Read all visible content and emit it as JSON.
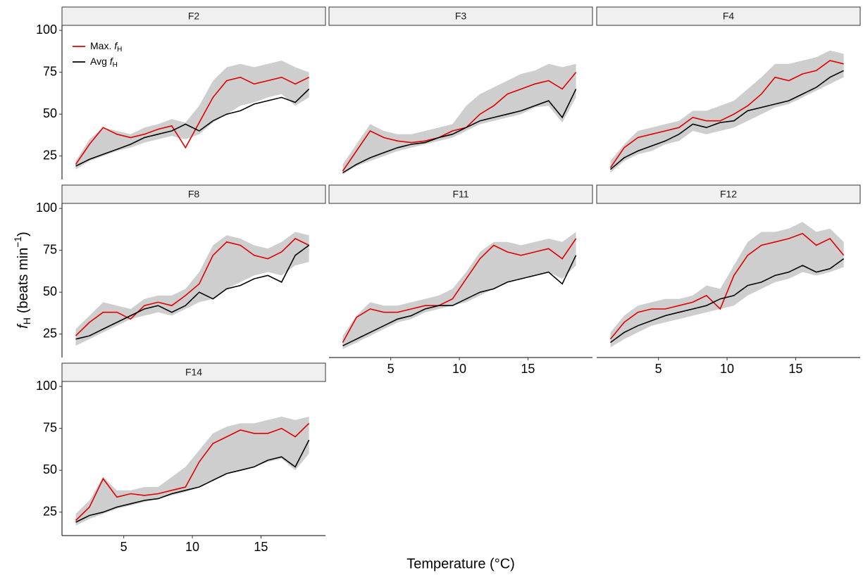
{
  "chart_data": {
    "type": "line",
    "x_label": "Temperature (°C)",
    "y_label": [
      "f",
      "H",
      "(beats min",
      "−1",
      ")"
    ],
    "xlim": [
      0.5,
      19.7
    ],
    "ylim": [
      11,
      103
    ],
    "xticks": [
      5,
      10,
      15
    ],
    "yticks": [
      25,
      50,
      75,
      100
    ],
    "series": [
      {
        "name": [
          "Max. ",
          "f",
          "H"
        ],
        "color": "#e00000"
      },
      {
        "name": [
          "Avg ",
          "f",
          "H"
        ],
        "color": "#000000"
      }
    ],
    "band_color": "#bdbdbd",
    "x": [
      1.5,
      2.5,
      3.5,
      4.5,
      5.5,
      6.5,
      7.5,
      8.5,
      9.5,
      10.5,
      11.5,
      12.5,
      13.5,
      14.5,
      15.5,
      16.5,
      17.5,
      18.5
    ],
    "panels": [
      {
        "title": "F2",
        "max": [
          20,
          32,
          42,
          38,
          36,
          38,
          41,
          43,
          30,
          45,
          60,
          70,
          72,
          68,
          70,
          72,
          68,
          72
        ],
        "avg": [
          19,
          23,
          26,
          29,
          32,
          36,
          38,
          40,
          44,
          40,
          46,
          50,
          52,
          56,
          58,
          60,
          57,
          65
        ],
        "lower": [
          17,
          22,
          25,
          28,
          30,
          33,
          35,
          37,
          35,
          38,
          45,
          50,
          55,
          57,
          60,
          62,
          55,
          60
        ],
        "upper": [
          22,
          35,
          42,
          40,
          38,
          42,
          44,
          47,
          45,
          55,
          70,
          78,
          80,
          78,
          80,
          82,
          78,
          75
        ]
      },
      {
        "title": "F3",
        "max": [
          16,
          28,
          40,
          36,
          34,
          33,
          34,
          36,
          40,
          42,
          50,
          55,
          62,
          65,
          68,
          70,
          65,
          75
        ],
        "avg": [
          15,
          20,
          24,
          27,
          30,
          32,
          33,
          36,
          38,
          42,
          46,
          48,
          50,
          52,
          55,
          58,
          48,
          65
        ],
        "lower": [
          14,
          19,
          22,
          25,
          28,
          30,
          32,
          34,
          36,
          40,
          44,
          46,
          48,
          50,
          54,
          55,
          45,
          60
        ],
        "upper": [
          20,
          32,
          44,
          40,
          38,
          38,
          40,
          42,
          44,
          55,
          62,
          66,
          70,
          74,
          76,
          80,
          78,
          80
        ]
      },
      {
        "title": "F4",
        "max": [
          18,
          30,
          36,
          38,
          40,
          42,
          48,
          46,
          46,
          50,
          55,
          62,
          72,
          70,
          74,
          76,
          82,
          80
        ],
        "avg": [
          17,
          24,
          28,
          31,
          34,
          38,
          44,
          42,
          45,
          46,
          52,
          54,
          56,
          58,
          62,
          66,
          72,
          76
        ],
        "lower": [
          15,
          22,
          26,
          28,
          32,
          34,
          40,
          38,
          40,
          42,
          46,
          50,
          54,
          56,
          60,
          64,
          68,
          72
        ],
        "upper": [
          22,
          32,
          40,
          42,
          44,
          46,
          52,
          52,
          55,
          58,
          65,
          72,
          80,
          80,
          82,
          84,
          88,
          86
        ]
      },
      {
        "title": "F8",
        "max": [
          24,
          32,
          38,
          38,
          34,
          42,
          44,
          42,
          48,
          55,
          72,
          80,
          78,
          72,
          70,
          74,
          82,
          78
        ],
        "avg": [
          22,
          24,
          28,
          32,
          36,
          40,
          42,
          38,
          42,
          50,
          46,
          52,
          54,
          58,
          60,
          56,
          72,
          78
        ],
        "lower": [
          18,
          22,
          26,
          30,
          34,
          36,
          38,
          36,
          40,
          44,
          46,
          52,
          56,
          60,
          62,
          60,
          66,
          68
        ],
        "upper": [
          28,
          36,
          44,
          42,
          40,
          46,
          48,
          48,
          52,
          62,
          78,
          84,
          82,
          78,
          76,
          80,
          86,
          84
        ]
      },
      {
        "title": "F11",
        "max": [
          20,
          35,
          40,
          38,
          38,
          40,
          42,
          42,
          46,
          58,
          70,
          78,
          74,
          72,
          74,
          76,
          70,
          82
        ],
        "avg": [
          18,
          22,
          26,
          30,
          34,
          36,
          40,
          42,
          42,
          46,
          50,
          52,
          56,
          58,
          60,
          62,
          55,
          72
        ],
        "lower": [
          16,
          20,
          24,
          28,
          32,
          34,
          38,
          40,
          42,
          44,
          48,
          52,
          56,
          58,
          60,
          62,
          58,
          66
        ],
        "upper": [
          24,
          36,
          44,
          42,
          42,
          44,
          46,
          48,
          52,
          62,
          74,
          80,
          80,
          78,
          80,
          82,
          80,
          86
        ]
      },
      {
        "title": "F12",
        "max": [
          22,
          32,
          38,
          40,
          40,
          42,
          44,
          48,
          40,
          60,
          72,
          78,
          80,
          82,
          85,
          78,
          82,
          72
        ],
        "avg": [
          20,
          26,
          30,
          33,
          36,
          38,
          40,
          42,
          46,
          48,
          54,
          56,
          60,
          62,
          66,
          62,
          64,
          70
        ],
        "lower": [
          17,
          22,
          26,
          30,
          32,
          34,
          36,
          38,
          40,
          42,
          48,
          52,
          56,
          58,
          62,
          60,
          62,
          65
        ],
        "upper": [
          26,
          36,
          42,
          44,
          46,
          46,
          48,
          54,
          52,
          66,
          80,
          86,
          86,
          88,
          92,
          86,
          88,
          80
        ]
      },
      {
        "title": "F14",
        "max": [
          20,
          28,
          45,
          34,
          36,
          35,
          36,
          38,
          40,
          55,
          66,
          70,
          74,
          72,
          72,
          75,
          70,
          78
        ],
        "avg": [
          19,
          23,
          25,
          28,
          30,
          32,
          33,
          36,
          38,
          40,
          44,
          48,
          50,
          52,
          56,
          58,
          52,
          68
        ],
        "lower": [
          17,
          21,
          24,
          27,
          29,
          31,
          33,
          35,
          37,
          40,
          44,
          48,
          50,
          52,
          55,
          57,
          50,
          60
        ],
        "upper": [
          24,
          32,
          46,
          38,
          38,
          40,
          40,
          46,
          52,
          62,
          72,
          76,
          78,
          78,
          80,
          82,
          80,
          82
        ]
      }
    ]
  }
}
